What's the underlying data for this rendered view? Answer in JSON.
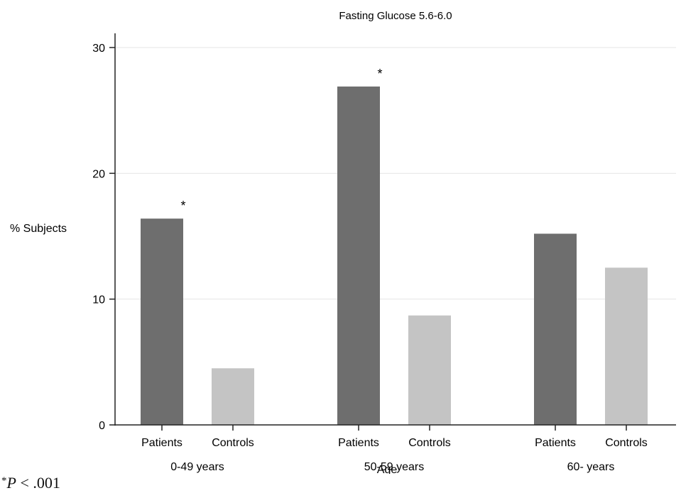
{
  "chart_data": {
    "type": "bar",
    "title": "Fasting Glucose 5.6-6.0",
    "xlabel": "Age",
    "ylabel": "% Subjects",
    "ylim": [
      0,
      30
    ],
    "yticks": [
      0,
      10,
      20,
      30
    ],
    "grid": true,
    "groups": [
      {
        "label": "0-49 years",
        "bars": [
          {
            "label": "Patients",
            "value": 16.4,
            "significant": true
          },
          {
            "label": "Controls",
            "value": 4.5,
            "significant": false
          }
        ]
      },
      {
        "label": "50-59 years",
        "bars": [
          {
            "label": "Patients",
            "value": 26.9,
            "significant": true
          },
          {
            "label": "Controls",
            "value": 8.7,
            "significant": false
          }
        ]
      },
      {
        "label": "60- years",
        "bars": [
          {
            "label": "Patients",
            "value": 15.2,
            "significant": false
          },
          {
            "label": "Controls",
            "value": 12.5,
            "significant": false
          }
        ]
      }
    ],
    "colors": {
      "Patients": "#6e6e6e",
      "Controls": "#c4c4c4",
      "axis": "#222222",
      "grid": "#e6e6e6"
    },
    "significance_marker": "*"
  },
  "footnote": {
    "marker": "*",
    "text_p": "P",
    "text_rest": "< .001"
  }
}
